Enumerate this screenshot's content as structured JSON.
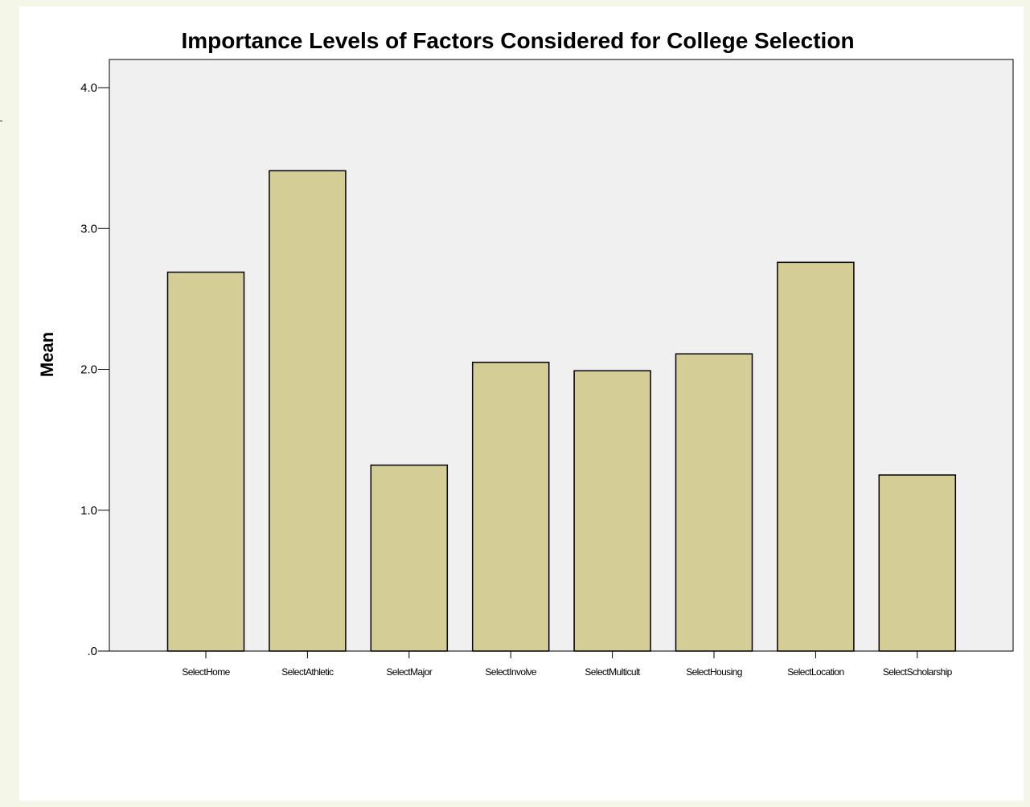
{
  "page": {
    "background_color": "#f4f7e8",
    "panel_color": "#ffffff"
  },
  "chart_data": {
    "type": "bar",
    "title": "Importance Levels of Factors Considered for College Selection",
    "xlabel": "",
    "ylabel": "Mean",
    "categories": [
      "SelectHome",
      "SelectAthletic",
      "SelectMajor",
      "SelectInvolve",
      "SelectMulticult",
      "SelectHousing",
      "SelectLocation",
      "SelectScholarship"
    ],
    "values": [
      2.69,
      3.41,
      1.32,
      2.05,
      1.99,
      2.11,
      2.76,
      1.25
    ],
    "ylim": [
      0,
      4.2
    ],
    "yticks": [
      0,
      1,
      2,
      3,
      4
    ],
    "ytick_labels": [
      ".0",
      "1.0",
      "2.0",
      "3.0",
      "4.0"
    ],
    "grid": false,
    "plot_background": "#f0f0f0",
    "bar_color": "#d4ce96",
    "bar_edge_color": "#000000"
  }
}
